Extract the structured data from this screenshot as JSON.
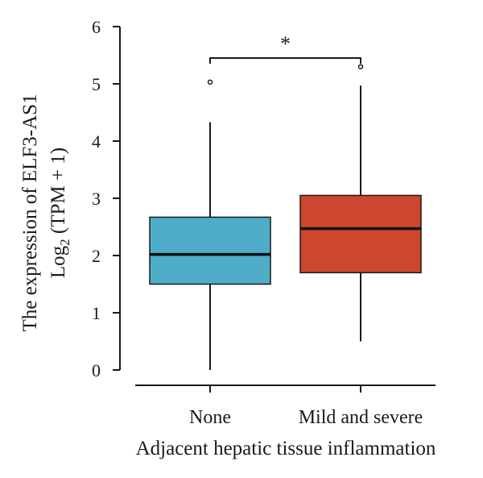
{
  "chart_data": {
    "type": "box",
    "categories": [
      "None",
      "Mild and severe"
    ],
    "boxes": [
      {
        "category": "None",
        "color": "#4fadc9",
        "whisker_low": 0.0,
        "q1": 1.5,
        "median": 2.02,
        "q3": 2.67,
        "whisker_high": 4.33,
        "outliers": [
          5.03
        ]
      },
      {
        "category": "Mild and severe",
        "color": "#cc472e",
        "whisker_low": 0.5,
        "q1": 1.7,
        "median": 2.47,
        "q3": 3.05,
        "whisker_high": 4.97,
        "outliers": [
          5.3
        ]
      }
    ],
    "ylim": [
      0,
      6
    ],
    "yticks": [
      "0",
      "1",
      "2",
      "3",
      "4",
      "5",
      "6"
    ],
    "xlabel": "Adjacent hepatic tissue inflammation",
    "ylabel_line1": "The expression of ELF3-AS1",
    "ylabel_line2_prefix": "Log",
    "ylabel_line2_subscript": "2",
    "ylabel_line2_suffix": " (TPM + 1)",
    "significance": {
      "between": [
        "None",
        "Mild and severe"
      ],
      "label": "*",
      "y": 5.45
    }
  }
}
